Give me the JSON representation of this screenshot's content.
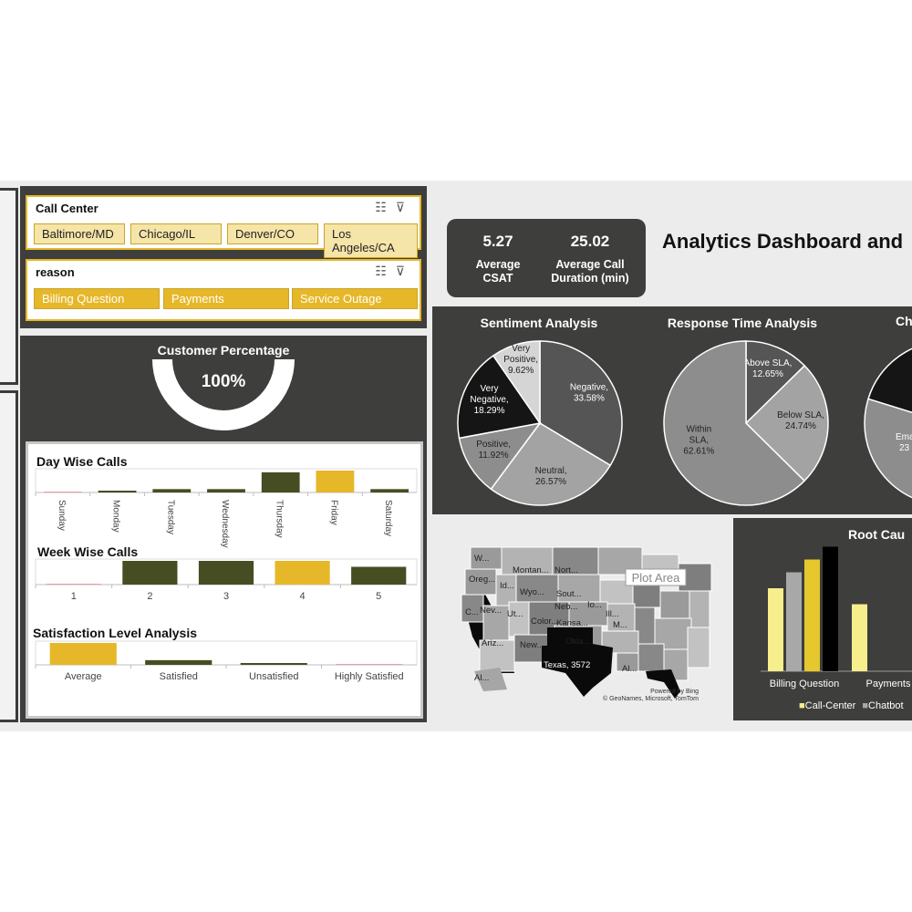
{
  "dashboard": {
    "title": "Analytics Dashboard and"
  },
  "slicers": {
    "call_center": {
      "title": "Call Center",
      "items": [
        "Baltimore/MD",
        "Chicago/IL",
        "Denver/CO",
        "Los Angeles/CA"
      ]
    },
    "reason": {
      "title": "reason",
      "items": [
        "Billing Question",
        "Payments",
        "Service Outage"
      ]
    }
  },
  "customer_percentage": {
    "title": "Customer Percentage",
    "value": "100%",
    "fraction": 1.0
  },
  "kpis": [
    {
      "value": "5.27",
      "label_line1": "Average",
      "label_line2": "CSAT"
    },
    {
      "value": "25.02",
      "label_line1": "Average Call",
      "label_line2": "Duration (min)"
    }
  ],
  "colors": {
    "olive": "#474d22",
    "gold": "#e6b728",
    "dark_panel": "#3e3e3c",
    "pale_yellow": "#f7ee8c"
  },
  "chart_data": [
    {
      "type": "bar",
      "title": "Day Wise Calls",
      "categories": [
        "Sunday",
        "Monday",
        "Tuesday",
        "Wednesday",
        "Thursday",
        "Friday",
        "Saturday"
      ],
      "values": [
        0,
        1,
        2,
        2,
        12,
        13,
        2
      ],
      "highlight": "Friday"
    },
    {
      "type": "bar",
      "title": "Week Wise Calls",
      "categories": [
        "1",
        "2",
        "3",
        "4",
        "5"
      ],
      "values": [
        0,
        12,
        12,
        12,
        9
      ],
      "highlight": "4"
    },
    {
      "type": "bar",
      "title": "Satisfaction Level Analysis",
      "categories": [
        "Average",
        "Satisfied",
        "Unsatisfied",
        "Highly Satisfied"
      ],
      "values": [
        14,
        3,
        1,
        0
      ],
      "highlight": "Average"
    },
    {
      "type": "pie",
      "title": "Sentiment Analysis",
      "slices": [
        {
          "label": "Negative,",
          "pct": "33.58%",
          "value": 33.58,
          "color": "#555555"
        },
        {
          "label": "Neutral,",
          "pct": "26.57%",
          "value": 26.57,
          "color": "#a3a3a3"
        },
        {
          "label": "Positive,",
          "pct": "11.92%",
          "value": 11.92,
          "color": "#8d8d8d"
        },
        {
          "label": "Very Negative,",
          "pct": "18.29%",
          "value": 18.29,
          "color": "#151515"
        },
        {
          "label": "Very Positive,",
          "pct": "9.62%",
          "value": 9.62,
          "color": "#d5d5d5"
        }
      ]
    },
    {
      "type": "pie",
      "title": "Response Time Analysis",
      "slices": [
        {
          "label": "Above SLA,",
          "pct": "12.65%",
          "value": 12.65,
          "color": "#555555"
        },
        {
          "label": "Below SLA,",
          "pct": "24.74%",
          "value": 24.74,
          "color": "#a3a3a3"
        },
        {
          "label": "Within SLA,",
          "pct": "62.61%",
          "value": 62.61,
          "color": "#8d8d8d"
        }
      ]
    },
    {
      "type": "pie",
      "title": "Ch",
      "slices": [
        {
          "label": "Ema",
          "pct": "23",
          "value": 23,
          "color": "#8d8d8d"
        }
      ]
    },
    {
      "type": "bar",
      "title": "Root Cau",
      "categories": [
        "Billing Question",
        "Payments"
      ],
      "series": [
        {
          "name": "Call-Center",
          "values": [
            52,
            42
          ],
          "color": "#f7ee8c"
        },
        {
          "name": "Chatbot",
          "values": [
            62,
            0
          ],
          "color": "#a8a8a8"
        },
        {
          "name": "",
          "values": [
            70,
            0
          ],
          "color": "#e6c72e"
        },
        {
          "name": "",
          "values": [
            78,
            0
          ],
          "color": "#000000"
        }
      ]
    }
  ],
  "map": {
    "plot_area_label": "Plot Area",
    "state_labels": [
      "W...",
      "Montan...",
      "Nort...",
      "Oreg...",
      "Id...",
      "Wyo...",
      "Sout...",
      "Nev...",
      "Neb...",
      "Io...",
      "C...",
      "Ut...",
      "Color...",
      "Kansa...",
      "Ill...",
      "M...",
      "Ariz...",
      "New...",
      "Okla...",
      "Texas, 3572",
      "Al...",
      "Al..."
    ],
    "credit_line1": "Powered by Bing",
    "credit_line2": "© GeoNames, Microsoft, TomTom"
  }
}
